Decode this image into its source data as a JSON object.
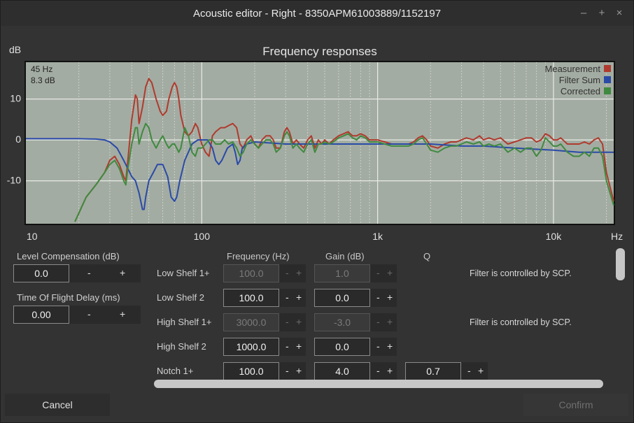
{
  "window": {
    "title": "Acoustic editor - Right - 8350APM61003889/1152197",
    "minimize": "–",
    "maximize": "+",
    "close": "×"
  },
  "chart_data": {
    "type": "line",
    "title": "Frequency responses",
    "ylabel": "dB",
    "xlabel": "Hz",
    "x_scale": "log",
    "xlim": [
      10,
      22000
    ],
    "ylim": [
      -20.5,
      19
    ],
    "x_ticks": [
      {
        "v": 10,
        "label": "10"
      },
      {
        "v": 100,
        "label": "100"
      },
      {
        "v": 1000,
        "label": "1k"
      },
      {
        "v": 10000,
        "label": "10k"
      }
    ],
    "y_ticks": [
      {
        "v": 10,
        "label": "10"
      },
      {
        "v": 0,
        "label": "0"
      },
      {
        "v": -10,
        "label": "-10"
      }
    ],
    "grid": true,
    "legend_position": "top-right",
    "cursor": {
      "freq_label": "45 Hz",
      "level_label": "8.3 dB"
    },
    "series": [
      {
        "name": "Measurement",
        "color": "#b03a2e",
        "points": [
          [
            19,
            -20
          ],
          [
            22,
            -14
          ],
          [
            25,
            -11
          ],
          [
            28,
            -8
          ],
          [
            30,
            -5
          ],
          [
            32,
            -4
          ],
          [
            34,
            -6
          ],
          [
            36,
            -9
          ],
          [
            37,
            -10
          ],
          [
            38,
            -5
          ],
          [
            40,
            5
          ],
          [
            42,
            11
          ],
          [
            43,
            10
          ],
          [
            44,
            4
          ],
          [
            46,
            8
          ],
          [
            48,
            13
          ],
          [
            50,
            15
          ],
          [
            52,
            14
          ],
          [
            55,
            10
          ],
          [
            58,
            7
          ],
          [
            60,
            6
          ],
          [
            63,
            7
          ],
          [
            65,
            10
          ],
          [
            68,
            13
          ],
          [
            70,
            14
          ],
          [
            72,
            13
          ],
          [
            74,
            10
          ],
          [
            76,
            6
          ],
          [
            80,
            2
          ],
          [
            84,
            1
          ],
          [
            88,
            2
          ],
          [
            92,
            4
          ],
          [
            95,
            3
          ],
          [
            100,
            -1
          ],
          [
            105,
            -3
          ],
          [
            110,
            -4
          ],
          [
            115,
            1
          ],
          [
            120,
            2
          ],
          [
            128,
            3
          ],
          [
            135,
            3
          ],
          [
            142,
            3.5
          ],
          [
            150,
            4
          ],
          [
            158,
            3
          ],
          [
            165,
            -1
          ],
          [
            172,
            -2
          ],
          [
            180,
            0
          ],
          [
            190,
            1
          ],
          [
            200,
            -1
          ],
          [
            210,
            -2
          ],
          [
            220,
            0
          ],
          [
            232,
            1
          ],
          [
            245,
            1
          ],
          [
            255,
            0
          ],
          [
            265,
            -2
          ],
          [
            280,
            -2
          ],
          [
            295,
            2
          ],
          [
            305,
            3
          ],
          [
            315,
            2
          ],
          [
            330,
            -1
          ],
          [
            345,
            0
          ],
          [
            360,
            -1
          ],
          [
            380,
            -2
          ],
          [
            400,
            0
          ],
          [
            420,
            1
          ],
          [
            440,
            -2
          ],
          [
            460,
            0
          ],
          [
            480,
            -1
          ],
          [
            500,
            0
          ],
          [
            530,
            -1
          ],
          [
            560,
            0
          ],
          [
            600,
            1
          ],
          [
            640,
            1.5
          ],
          [
            680,
            2
          ],
          [
            720,
            1
          ],
          [
            760,
            1
          ],
          [
            800,
            1.5
          ],
          [
            850,
            1
          ],
          [
            900,
            0
          ],
          [
            950,
            0
          ],
          [
            1000,
            0
          ],
          [
            1100,
            -0.5
          ],
          [
            1200,
            -1
          ],
          [
            1300,
            -1
          ],
          [
            1400,
            -1
          ],
          [
            1500,
            -1
          ],
          [
            1600,
            -0.5
          ],
          [
            1700,
            0.5
          ],
          [
            1800,
            1
          ],
          [
            1900,
            0
          ],
          [
            2000,
            -1.5
          ],
          [
            2200,
            -2
          ],
          [
            2400,
            -1
          ],
          [
            2600,
            -0.5
          ],
          [
            2800,
            -0.5
          ],
          [
            3000,
            0
          ],
          [
            3200,
            0.5
          ],
          [
            3500,
            0
          ],
          [
            3800,
            1
          ],
          [
            4000,
            0
          ],
          [
            4300,
            0.5
          ],
          [
            4600,
            0
          ],
          [
            5000,
            0.5
          ],
          [
            5500,
            -1
          ],
          [
            6000,
            -0.5
          ],
          [
            6500,
            0
          ],
          [
            7000,
            0.5
          ],
          [
            7500,
            0.5
          ],
          [
            8000,
            -0.5
          ],
          [
            8500,
            0
          ],
          [
            9000,
            1.5
          ],
          [
            9500,
            1
          ],
          [
            10000,
            0
          ],
          [
            10500,
            0
          ],
          [
            11000,
            0.5
          ],
          [
            12000,
            -1
          ],
          [
            13000,
            -1
          ],
          [
            14000,
            -1
          ],
          [
            15000,
            -0.5
          ],
          [
            16000,
            -1
          ],
          [
            17000,
            0
          ],
          [
            18000,
            0.5
          ],
          [
            19000,
            -1
          ],
          [
            20000,
            -8
          ],
          [
            22000,
            -15
          ]
        ]
      },
      {
        "name": "Filter Sum",
        "color": "#2a4aa8",
        "points": [
          [
            10,
            0.3
          ],
          [
            20,
            0.3
          ],
          [
            25,
            0.2
          ],
          [
            28,
            0
          ],
          [
            30,
            -0.5
          ],
          [
            33,
            -2
          ],
          [
            36,
            -5
          ],
          [
            38,
            -7
          ],
          [
            40,
            -9
          ],
          [
            42,
            -10
          ],
          [
            44,
            -13
          ],
          [
            46,
            -17
          ],
          [
            47,
            -17
          ],
          [
            48,
            -14
          ],
          [
            50,
            -10
          ],
          [
            53,
            -8
          ],
          [
            56,
            -6
          ],
          [
            60,
            -6
          ],
          [
            64,
            -9
          ],
          [
            67,
            -14
          ],
          [
            70,
            -15
          ],
          [
            72,
            -14
          ],
          [
            75,
            -10
          ],
          [
            80,
            -5
          ],
          [
            88,
            -1
          ],
          [
            95,
            0
          ],
          [
            100,
            0
          ],
          [
            108,
            0
          ],
          [
            115,
            -2
          ],
          [
            120,
            -5
          ],
          [
            125,
            -6
          ],
          [
            130,
            -5
          ],
          [
            140,
            -2
          ],
          [
            150,
            -1
          ],
          [
            155,
            -3
          ],
          [
            160,
            -6
          ],
          [
            165,
            -5
          ],
          [
            170,
            -2
          ],
          [
            180,
            -1
          ],
          [
            200,
            -0.5
          ],
          [
            300,
            -1
          ],
          [
            500,
            -1
          ],
          [
            700,
            -1
          ],
          [
            900,
            -1
          ],
          [
            1000,
            -1
          ],
          [
            1200,
            -1
          ],
          [
            1500,
            -1
          ],
          [
            2000,
            -1
          ],
          [
            3000,
            -1.5
          ],
          [
            4000,
            -1.5
          ],
          [
            6000,
            -2
          ],
          [
            10000,
            -2.5
          ],
          [
            14000,
            -3
          ],
          [
            20000,
            -3
          ],
          [
            22000,
            -3
          ]
        ]
      },
      {
        "name": "Corrected",
        "color": "#3f8a3f",
        "points": [
          [
            19,
            -20
          ],
          [
            22,
            -14
          ],
          [
            25,
            -11
          ],
          [
            28,
            -8
          ],
          [
            30,
            -6
          ],
          [
            32,
            -5
          ],
          [
            34,
            -7
          ],
          [
            36,
            -10
          ],
          [
            37,
            -11
          ],
          [
            38,
            -7
          ],
          [
            40,
            -1
          ],
          [
            42,
            3
          ],
          [
            43,
            3
          ],
          [
            44,
            -1
          ],
          [
            46,
            2
          ],
          [
            48,
            4
          ],
          [
            50,
            3
          ],
          [
            52,
            0
          ],
          [
            55,
            -2
          ],
          [
            58,
            0
          ],
          [
            60,
            1
          ],
          [
            63,
            -1
          ],
          [
            65,
            -2
          ],
          [
            68,
            -1
          ],
          [
            70,
            -1
          ],
          [
            72,
            -2
          ],
          [
            74,
            -3
          ],
          [
            76,
            -2
          ],
          [
            80,
            3
          ],
          [
            84,
            1
          ],
          [
            88,
            -3
          ],
          [
            92,
            -4
          ],
          [
            95,
            -2
          ],
          [
            100,
            -2
          ],
          [
            105,
            -1
          ],
          [
            110,
            0
          ],
          [
            115,
            0
          ],
          [
            120,
            -1
          ],
          [
            128,
            -1
          ],
          [
            135,
            0
          ],
          [
            142,
            -1
          ],
          [
            150,
            -0.5
          ],
          [
            158,
            -2
          ],
          [
            165,
            -4
          ],
          [
            172,
            -3
          ],
          [
            180,
            -1
          ],
          [
            190,
            0
          ],
          [
            200,
            -1
          ],
          [
            210,
            -2
          ],
          [
            220,
            -1
          ],
          [
            232,
            0
          ],
          [
            245,
            0
          ],
          [
            255,
            -1
          ],
          [
            265,
            -3
          ],
          [
            280,
            -2
          ],
          [
            295,
            1
          ],
          [
            305,
            2
          ],
          [
            315,
            1
          ],
          [
            330,
            -2
          ],
          [
            345,
            -1
          ],
          [
            360,
            -2
          ],
          [
            380,
            -3
          ],
          [
            400,
            -1
          ],
          [
            420,
            0
          ],
          [
            440,
            -3
          ],
          [
            460,
            -1
          ],
          [
            480,
            -1
          ],
          [
            500,
            -0.5
          ],
          [
            530,
            -1
          ],
          [
            560,
            -0.5
          ],
          [
            600,
            0.5
          ],
          [
            640,
            1
          ],
          [
            680,
            1.5
          ],
          [
            720,
            0.5
          ],
          [
            760,
            0
          ],
          [
            800,
            1
          ],
          [
            850,
            0.5
          ],
          [
            900,
            -0.5
          ],
          [
            950,
            -0.5
          ],
          [
            1000,
            -0.5
          ],
          [
            1100,
            -1
          ],
          [
            1200,
            -1.5
          ],
          [
            1300,
            -1.5
          ],
          [
            1400,
            -1.5
          ],
          [
            1500,
            -1.5
          ],
          [
            1600,
            -1
          ],
          [
            1700,
            0
          ],
          [
            1800,
            0.5
          ],
          [
            1900,
            -1
          ],
          [
            2000,
            -2.5
          ],
          [
            2200,
            -3
          ],
          [
            2400,
            -2
          ],
          [
            2600,
            -1.5
          ],
          [
            2800,
            -1.5
          ],
          [
            3000,
            -1
          ],
          [
            3200,
            -0.5
          ],
          [
            3500,
            -1
          ],
          [
            3800,
            -0.5
          ],
          [
            4000,
            -1.5
          ],
          [
            4300,
            -1
          ],
          [
            4600,
            -1.5
          ],
          [
            5000,
            -1
          ],
          [
            5500,
            -3
          ],
          [
            6000,
            -2
          ],
          [
            6500,
            -3
          ],
          [
            7000,
            -2
          ],
          [
            7500,
            -2
          ],
          [
            8000,
            -4
          ],
          [
            8500,
            -2.5
          ],
          [
            9000,
            0.5
          ],
          [
            9500,
            -0.5
          ],
          [
            10000,
            -1.5
          ],
          [
            10500,
            -1.5
          ],
          [
            11000,
            -1
          ],
          [
            12000,
            -3
          ],
          [
            13000,
            -4
          ],
          [
            14000,
            -4
          ],
          [
            15000,
            -3
          ],
          [
            16000,
            -4
          ],
          [
            17000,
            -2
          ],
          [
            18000,
            -2
          ],
          [
            19000,
            -4
          ],
          [
            20000,
            -10
          ],
          [
            22000,
            -16
          ]
        ]
      }
    ]
  },
  "left": {
    "level_comp": {
      "label": "Level Compensation (dB)",
      "value": "0.0",
      "minus": "-",
      "plus": "+"
    },
    "tof": {
      "label": "Time Of Flight Delay (ms)",
      "value": "0.00",
      "minus": "-",
      "plus": "+"
    }
  },
  "filters": {
    "headers": {
      "frequency": "Frequency (Hz)",
      "gain": "Gain (dB)",
      "q": "Q"
    },
    "rows": [
      {
        "name": "Low Shelf 1+",
        "freq": "100.0",
        "gain": "1.0",
        "q": "",
        "note": "Filter is controlled by SCP.",
        "disabled": true
      },
      {
        "name": "Low Shelf 2",
        "freq": "100.0",
        "gain": "0.0",
        "q": "",
        "note": "",
        "disabled": false
      },
      {
        "name": "High Shelf 1+",
        "freq": "3000.0",
        "gain": "-3.0",
        "q": "",
        "note": "Filter is controlled by SCP.",
        "disabled": true
      },
      {
        "name": "High Shelf 2",
        "freq": "1000.0",
        "gain": "0.0",
        "q": "",
        "note": "",
        "disabled": false
      },
      {
        "name": "Notch 1+",
        "freq": "100.0",
        "gain": "4.0",
        "q": "0.7",
        "note": "",
        "disabled": false
      }
    ],
    "minus": "-",
    "plus": "+"
  },
  "footer": {
    "cancel": "Cancel",
    "confirm": "Confirm"
  }
}
